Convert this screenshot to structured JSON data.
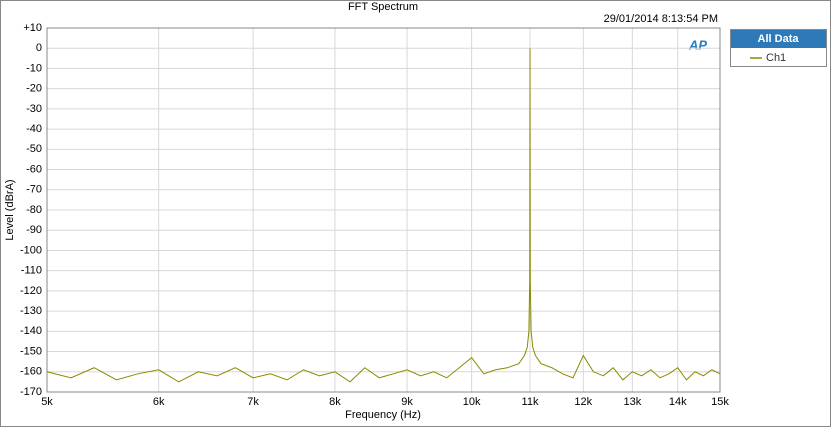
{
  "chart_data": {
    "type": "line",
    "title": "FFT Spectrum",
    "timestamp": "29/01/2014 8:13:54 PM",
    "logo": "AP",
    "x_label": "Frequency (Hz)",
    "y_label": "Level (dBrA)",
    "x_scale": "log",
    "grid": true,
    "legend": {
      "title": "All Data",
      "corner": "right"
    },
    "xlim": [
      5000,
      15000
    ],
    "ylim": [
      -170,
      10
    ],
    "xticks": [
      {
        "value": 5000,
        "label": "5k"
      },
      {
        "value": 6000,
        "label": "6k"
      },
      {
        "value": 7000,
        "label": "7k"
      },
      {
        "value": 8000,
        "label": "8k"
      },
      {
        "value": 9000,
        "label": "9k"
      },
      {
        "value": 10000,
        "label": "10k"
      },
      {
        "value": 11000,
        "label": "11k"
      },
      {
        "value": 12000,
        "label": "12k"
      },
      {
        "value": 13000,
        "label": "13k"
      },
      {
        "value": 14000,
        "label": "14k"
      },
      {
        "value": 15000,
        "label": "15k"
      }
    ],
    "yticks": [
      {
        "value": 10,
        "label": "+10"
      },
      0,
      -10,
      -20,
      -30,
      -40,
      -50,
      -60,
      -70,
      -80,
      -90,
      -100,
      -110,
      -120,
      -130,
      -140,
      -150,
      -160,
      -170
    ],
    "x": [
      5000,
      5200,
      5400,
      5600,
      5800,
      6000,
      6200,
      6400,
      6600,
      6800,
      7000,
      7200,
      7400,
      7600,
      7800,
      8000,
      8200,
      8400,
      8600,
      8800,
      9000,
      9200,
      9400,
      9600,
      9800,
      10000,
      10200,
      10400,
      10600,
      10800,
      10900,
      10950,
      10980,
      10995,
      11000,
      11005,
      11020,
      11050,
      11100,
      11200,
      11400,
      11600,
      11800,
      12000,
      12200,
      12400,
      12600,
      12800,
      13000,
      13200,
      13400,
      13600,
      13800,
      14000,
      14200,
      14400,
      14600,
      14800,
      15000
    ],
    "series": [
      {
        "name": "Ch1",
        "color": "#8b8a00",
        "values": [
          -160,
          -163,
          -158,
          -164,
          -161,
          -159,
          -165,
          -160,
          -162,
          -158,
          -163,
          -161,
          -164,
          -159,
          -162,
          -160,
          -165,
          -158,
          -163,
          -161,
          -159,
          -162,
          -160,
          -163,
          -158,
          -153,
          -161,
          -159,
          -158,
          -156,
          -152,
          -148,
          -140,
          -115,
          0,
          -115,
          -140,
          -148,
          -152,
          -156,
          -158,
          -161,
          -163,
          -152,
          -160,
          -162,
          -158,
          -164,
          -160,
          -162,
          -159,
          -163,
          -161,
          -158,
          -164,
          -160,
          -162,
          -159,
          -161
        ]
      }
    ]
  }
}
